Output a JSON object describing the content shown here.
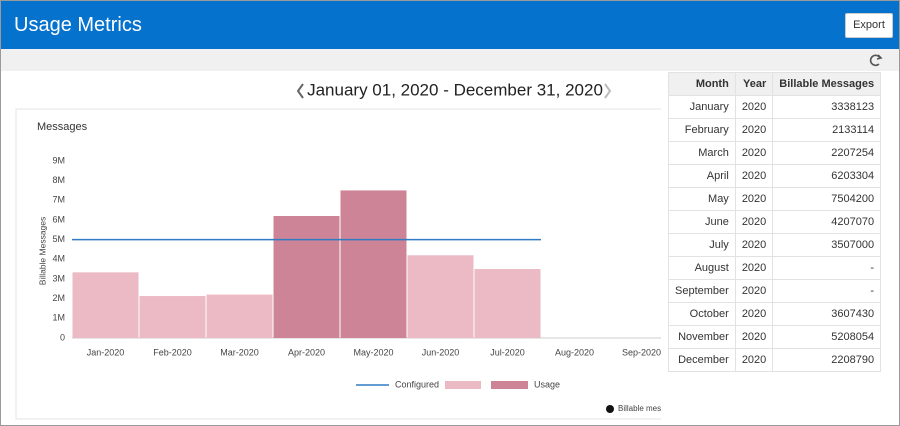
{
  "header": {
    "title": "Usage Metrics",
    "export_button": "Export"
  },
  "date_range": "January 01, 2020 - December 31, 2020",
  "chart_data": {
    "type": "bar",
    "title": "Messages",
    "y_label": "Billable Messages",
    "categories": [
      "Jan-2020",
      "Feb-2020",
      "Mar-2020",
      "Apr-2020",
      "May-2020",
      "Jun-2020",
      "Jul-2020",
      "Aug-2020",
      "Sep-2020"
    ],
    "series": [
      {
        "name": "Usage",
        "color": "#ebbac5",
        "over_color": "#cc8496",
        "values": [
          3338123,
          2133114,
          2207254,
          6203304,
          7504200,
          4207070,
          3507000,
          null,
          null
        ]
      }
    ],
    "reference_line": {
      "name": "Configured",
      "value": 5000000,
      "color": "#2f7bc4"
    },
    "ylim": [
      0,
      9000000
    ],
    "yticks": [
      0,
      {
        "value": 1000000,
        "label": "1M"
      },
      {
        "value": 2000000,
        "label": "2M"
      },
      {
        "value": 3000000,
        "label": "3M"
      },
      {
        "value": 4000000,
        "label": "4M"
      },
      {
        "value": 5000000,
        "label": "5M"
      },
      {
        "value": 6000000,
        "label": "6M"
      },
      {
        "value": 7000000,
        "label": "7M"
      },
      {
        "value": 8000000,
        "label": "8M"
      },
      {
        "value": 9000000,
        "label": "9M"
      }
    ],
    "footnote": "Billable mes"
  },
  "table": {
    "columns": [
      "Month",
      "Year",
      "Billable Messages"
    ],
    "rows": [
      [
        "January",
        "2020",
        "3338123"
      ],
      [
        "February",
        "2020",
        "2133114"
      ],
      [
        "March",
        "2020",
        "2207254"
      ],
      [
        "April",
        "2020",
        "6203304"
      ],
      [
        "May",
        "2020",
        "7504200"
      ],
      [
        "June",
        "2020",
        "4207070"
      ],
      [
        "July",
        "2020",
        "3507000"
      ],
      [
        "August",
        "2020",
        "-"
      ],
      [
        "September",
        "2020",
        "-"
      ],
      [
        "October",
        "2020",
        "3607430"
      ],
      [
        "November",
        "2020",
        "5208054"
      ],
      [
        "December",
        "2020",
        "2208790"
      ]
    ]
  }
}
